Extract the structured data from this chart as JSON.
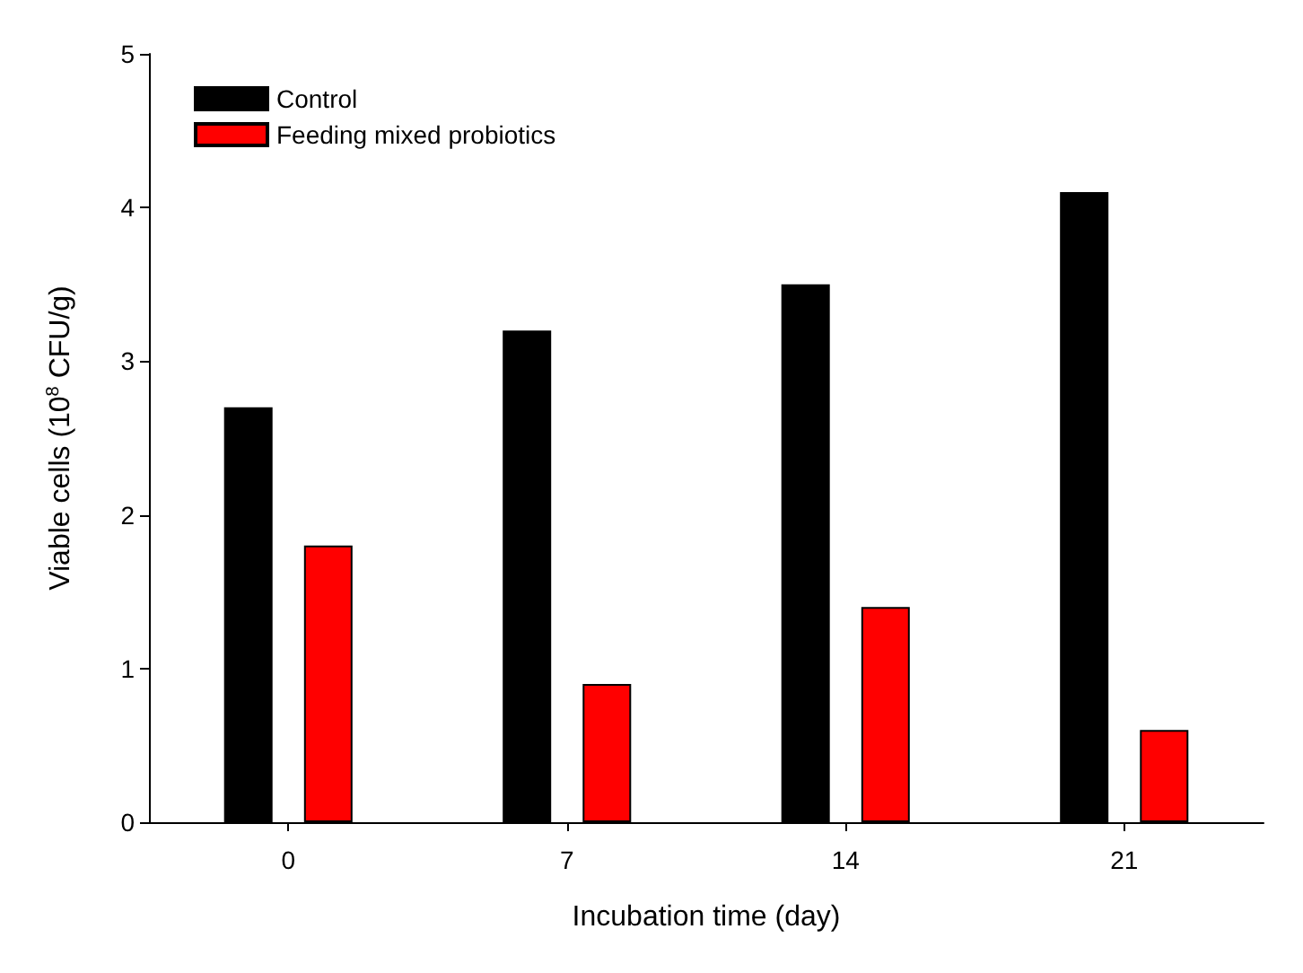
{
  "chart_data": {
    "type": "bar",
    "xlabel": "Incubation time (day)",
    "ylabel": "Viable cells (10$^{8}$ CFU/g)",
    "categories": [
      "0",
      "7",
      "14",
      "21"
    ],
    "series": [
      {
        "name": "Control",
        "color": "#000000",
        "values": [
          2.7,
          3.2,
          3.5,
          4.1
        ]
      },
      {
        "name": "Feeding mixed probiotics",
        "color": "#ff0000",
        "values": [
          1.8,
          0.9,
          1.4,
          0.6
        ]
      }
    ],
    "ylim": [
      0,
      5
    ],
    "yticks": [
      0,
      1,
      2,
      3,
      4,
      5
    ],
    "grid": false,
    "legend": "top left"
  }
}
